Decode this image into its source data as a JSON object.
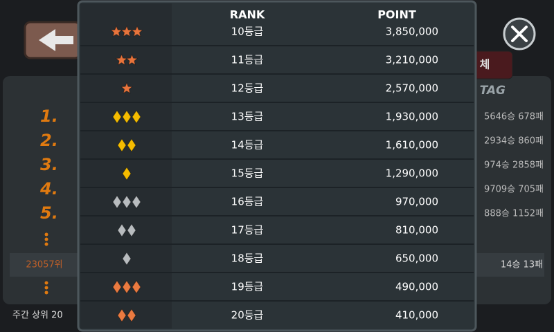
{
  "header": {
    "rank": "RANK",
    "point": "POINT"
  },
  "rows": [
    {
      "rank": "10등급",
      "point": "3,850,000"
    },
    {
      "rank": "11등급",
      "point": "3,210,000"
    },
    {
      "rank": "12등급",
      "point": "2,570,000"
    },
    {
      "rank": "13등급",
      "point": "1,930,000"
    },
    {
      "rank": "14등급",
      "point": "1,610,000"
    },
    {
      "rank": "15등급",
      "point": "1,290,000"
    },
    {
      "rank": "16등급",
      "point": "970,000"
    },
    {
      "rank": "17등급",
      "point": "810,000"
    },
    {
      "rank": "18등급",
      "point": "650,000"
    },
    {
      "rank": "19등급",
      "point": "490,000"
    },
    {
      "rank": "20등급",
      "point": "410,000"
    }
  ],
  "background": {
    "tab": "체",
    "tag": "TAG",
    "places": [
      "1.",
      "2.",
      "3.",
      "4.",
      "5."
    ],
    "records": [
      "5646승 678패",
      "2934승 860패",
      "974승 2858패",
      "9709승 705패",
      "888승 1152패"
    ],
    "my_rank": "23057위",
    "my_record": "14승 13패",
    "footer": "주간 상위 20"
  }
}
